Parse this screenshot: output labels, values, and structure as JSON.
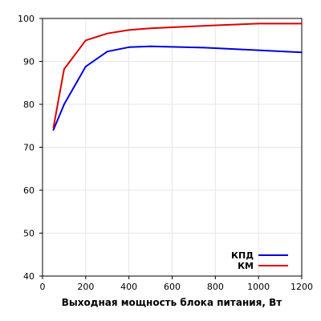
{
  "chart_data": {
    "type": "line",
    "xlabel": "Выходная мощность блока питания, Вт",
    "ylabel": "",
    "xlim": [
      0,
      1200
    ],
    "ylim": [
      40,
      100
    ],
    "xticks": [
      0,
      200,
      400,
      600,
      800,
      1000,
      1200
    ],
    "yticks": [
      40,
      50,
      60,
      70,
      80,
      90,
      100
    ],
    "grid": true,
    "legend_position": "bottom-right",
    "series": [
      {
        "name": "КПД",
        "color": "#0000dd",
        "x": [
          50,
          100,
          200,
          300,
          400,
          500,
          750,
          1000,
          1200
        ],
        "y": [
          74.0,
          80.0,
          88.8,
          92.3,
          93.3,
          93.5,
          93.2,
          92.6,
          92.1
        ]
      },
      {
        "name": "КМ",
        "color": "#dd0000",
        "x": [
          50,
          100,
          200,
          300,
          400,
          500,
          750,
          1000,
          1200
        ],
        "y": [
          74.5,
          88.2,
          94.9,
          96.5,
          97.3,
          97.7,
          98.3,
          98.8,
          98.8
        ]
      }
    ]
  }
}
